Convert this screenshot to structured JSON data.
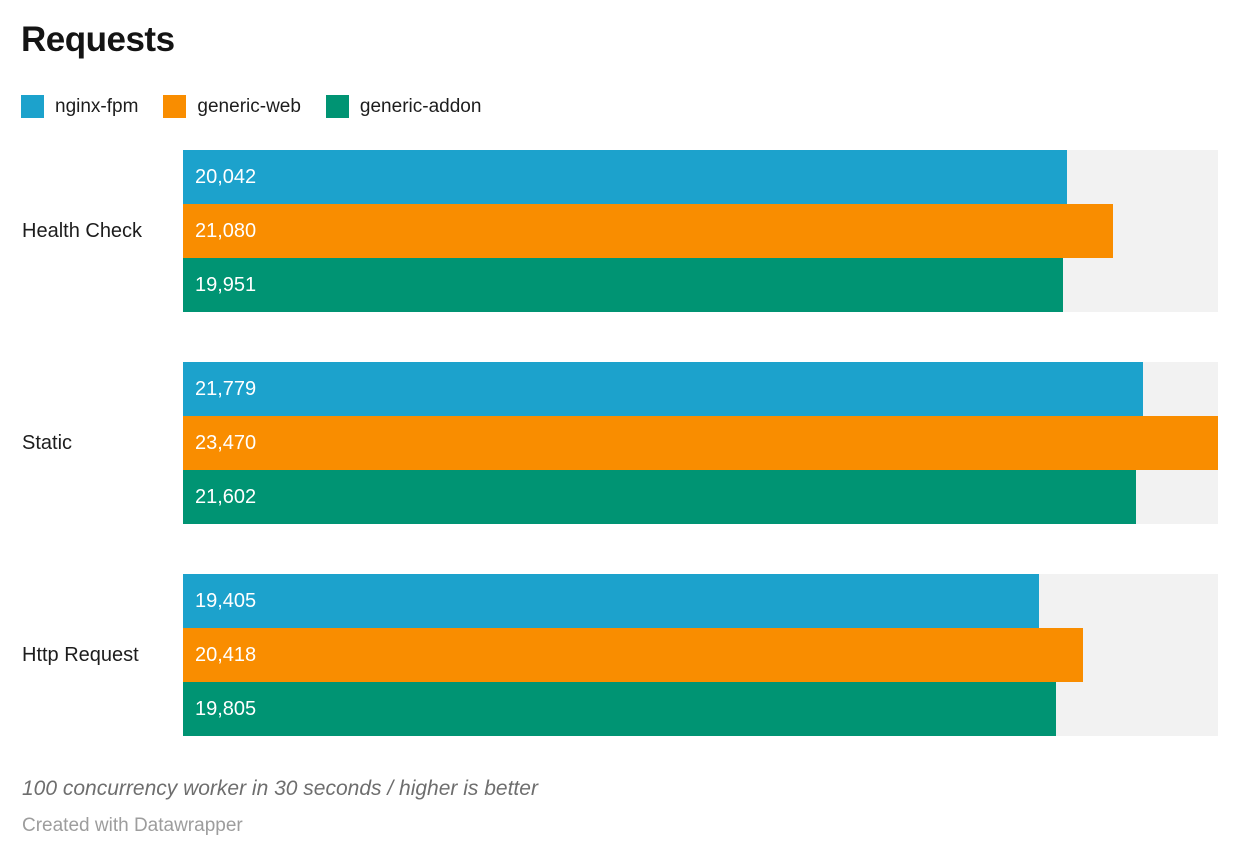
{
  "title": "Requests",
  "chart_data": {
    "type": "bar",
    "orientation": "horizontal",
    "title": "Requests",
    "categories": [
      "Health Check",
      "Static",
      "Http Request"
    ],
    "series": [
      {
        "name": "nginx-fpm",
        "color": "#1CA2CC",
        "values": [
          20042,
          21779,
          19405
        ],
        "labels": [
          "20,042",
          "21,779",
          "19,405"
        ]
      },
      {
        "name": "generic-web",
        "color": "#F98D00",
        "values": [
          21080,
          23470,
          20418
        ],
        "labels": [
          "21,080",
          "23,470",
          "20,418"
        ]
      },
      {
        "name": "generic-addon",
        "color": "#009473",
        "values": [
          19951,
          21602,
          19805
        ],
        "labels": [
          "19,951",
          "21,602",
          "19,805"
        ]
      }
    ],
    "xlim": [
      0,
      23470
    ],
    "track_color": "#f2f2f2",
    "grid": false,
    "legend_position": "top",
    "value_labels": "inside-start"
  },
  "footer": {
    "footnote": "100 concurrency worker in 30 seconds / higher is better",
    "attribution": "Created with Datawrapper"
  }
}
